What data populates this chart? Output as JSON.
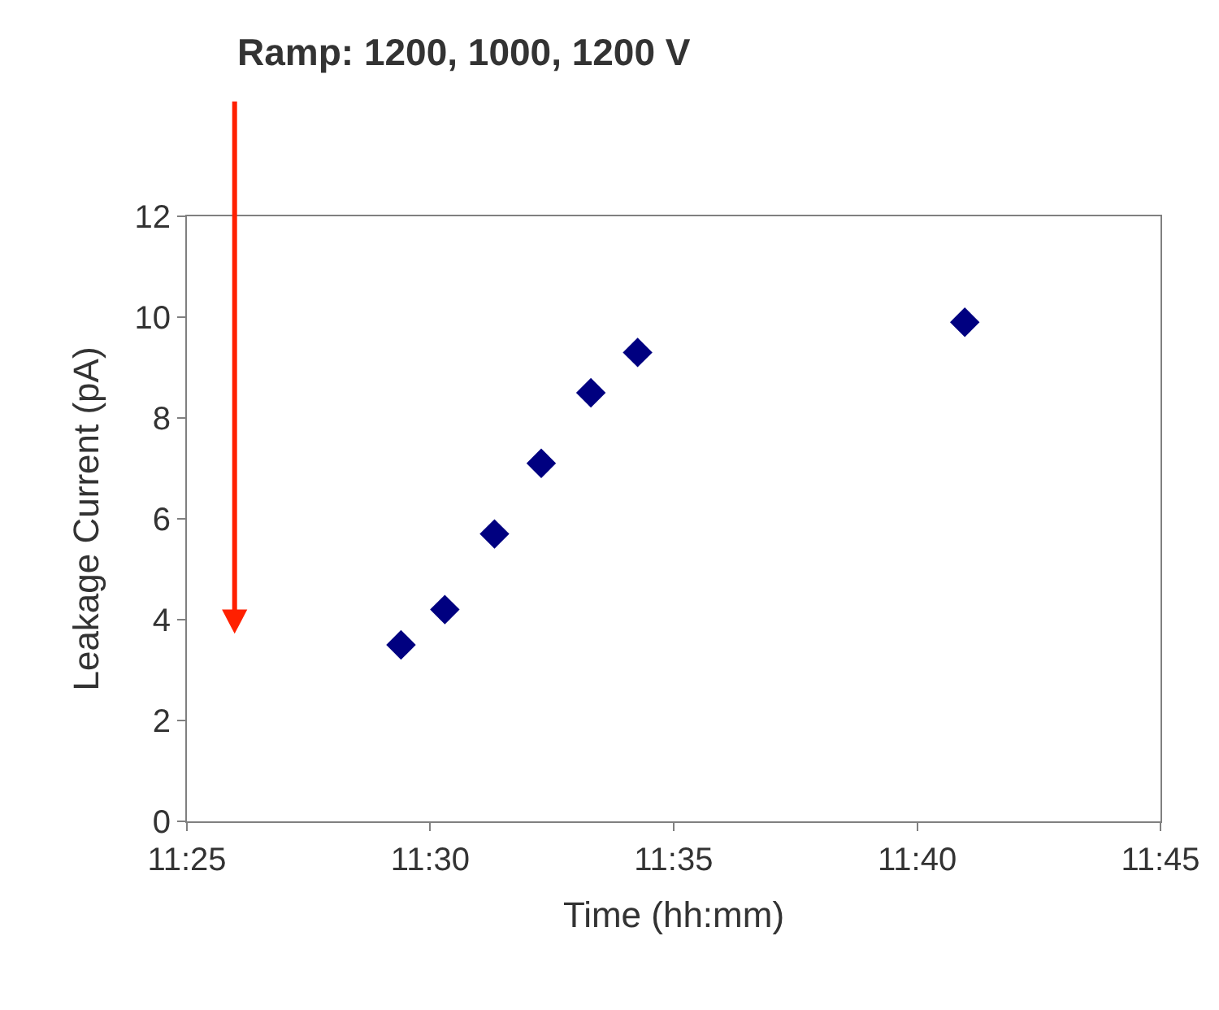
{
  "chart_data": {
    "type": "scatter",
    "xlabel": "Time (hh:mm)",
    "ylabel": "Leakage Current (pA)",
    "x": [
      11.49,
      11.505,
      11.522,
      11.538,
      11.555,
      11.571,
      11.683
    ],
    "series": [
      {
        "color": "#000080",
        "values": [
          3.5,
          4.2,
          5.7,
          7.1,
          8.5,
          9.3,
          9.9
        ]
      }
    ],
    "xlim": [
      11.4167,
      11.75
    ],
    "xticks": [
      {
        "value": 11.4167,
        "label": "11:25"
      },
      {
        "value": 11.5,
        "label": "11:30"
      },
      {
        "value": 11.5833,
        "label": "11:35"
      },
      {
        "value": 11.6667,
        "label": "11:40"
      },
      {
        "value": 11.75,
        "label": "11:45"
      }
    ],
    "ylim": [
      0,
      12
    ],
    "yticks": [
      0,
      2,
      4,
      6,
      8,
      10,
      12
    ],
    "marker": "diamond",
    "annotations": [
      "Ramp: 1200, 1000, 1200 V"
    ]
  }
}
